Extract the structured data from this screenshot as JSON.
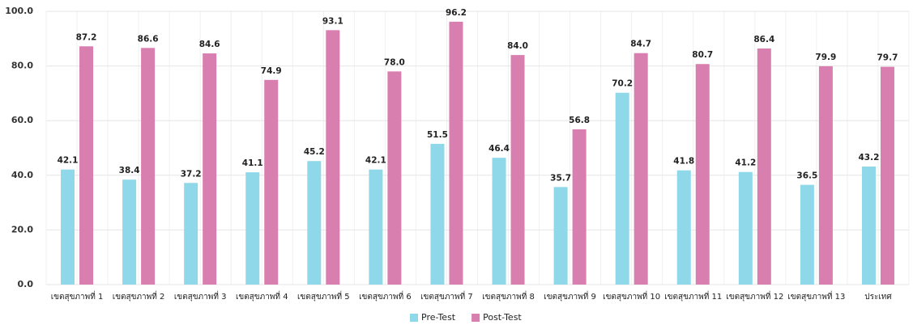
{
  "chart_data": {
    "type": "bar",
    "categories": [
      "เขตสุขภาพที่ 1",
      "เขตสุขภาพที่ 2",
      "เขตสุขภาพที่ 3",
      "เขตสุขภาพที่ 4",
      "เขตสุขภาพที่ 5",
      "เขตสุขภาพที่ 6",
      "เขตสุขภาพที่ 7",
      "เขตสุขภาพที่ 8",
      "เขตสุขภาพที่ 9",
      "เขตสุขภาพที่ 10",
      "เขตสุขภาพที่ 11",
      "เขตสุขภาพที่ 12",
      "เขตสุขภาพที่ 13",
      "ประเทศ"
    ],
    "series": [
      {
        "name": "Pre-Test",
        "color": "#8fd8ea",
        "values": [
          42.1,
          38.4,
          37.2,
          41.1,
          45.2,
          42.1,
          51.5,
          46.4,
          35.7,
          70.2,
          41.8,
          41.2,
          36.5,
          43.2
        ]
      },
      {
        "name": "Post-Test",
        "color": "#d97fb0",
        "values": [
          87.2,
          86.6,
          84.6,
          74.9,
          93.1,
          78,
          96.2,
          84,
          56.8,
          84.7,
          80.7,
          86.4,
          79.9,
          79.7
        ],
        "value_labels": [
          "87.2",
          "86.6",
          "84.6",
          "74.9",
          "93.1",
          "78.0",
          "96.2",
          "84.0",
          "56.8",
          "84.7",
          "80.7",
          "86.4",
          "79.9",
          "79.7"
        ]
      }
    ],
    "ylim": [
      0,
      100
    ],
    "yticks": [
      {
        "value": 0,
        "label": "0.0"
      },
      {
        "value": 20,
        "label": "20.0"
      },
      {
        "value": 40,
        "label": "40.0"
      },
      {
        "value": 60,
        "label": "60.0"
      },
      {
        "value": 80,
        "label": "80.0"
      },
      {
        "value": 100,
        "label": "100.0"
      }
    ],
    "grid": true,
    "legend": "bottom"
  }
}
